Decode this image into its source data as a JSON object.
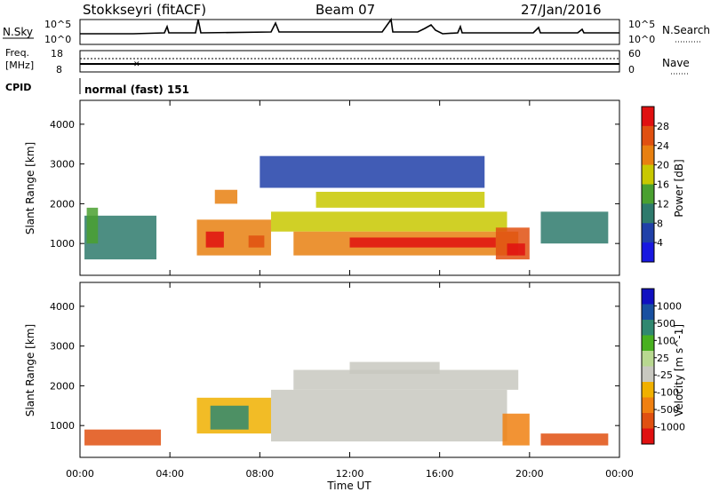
{
  "header": {
    "station": "Stokkseyri (fitACF)",
    "beam": "Beam 07",
    "date": "27/Jan/2016"
  },
  "noise_panel": {
    "left_label": "N.Sky",
    "left_ticks": [
      "10^5",
      "10^0"
    ],
    "right_ticks": [
      "10^5",
      "10^0"
    ],
    "right_label": "N.Search"
  },
  "freq_panel": {
    "left_label_1": "Freq.",
    "left_label_2": "[MHz]",
    "left_ticks": [
      "18",
      "8"
    ],
    "right_ticks": [
      "60",
      "0"
    ],
    "right_label": "Nave"
  },
  "cpid": {
    "label": "CPID",
    "value": "normal (fast) 151"
  },
  "x_axis": {
    "ticks": [
      "00:00",
      "04:00",
      "08:00",
      "12:00",
      "16:00",
      "20:00",
      "00:00"
    ],
    "title": "Time UT"
  },
  "colors": {
    "power": [
      "#1818e0",
      "#2040a8",
      "#2e7a6c",
      "#4aa030",
      "#c8c800",
      "#e88010",
      "#e05010",
      "#e01010"
    ],
    "velocity": [
      "#e01010",
      "#e05010",
      "#f08010",
      "#f0b000",
      "#c8c8c0",
      "#b8d890",
      "#48b020",
      "#308870",
      "#1850a0",
      "#1010c0"
    ]
  },
  "chart_data": [
    {
      "type": "heatmap",
      "name": "Power",
      "ylabel": "Slant Range [km]",
      "xlabel": "Time UT",
      "x_ticks": [
        "00:00",
        "04:00",
        "08:00",
        "12:00",
        "16:00",
        "20:00",
        "00:00"
      ],
      "y_ticks": [
        1000,
        2000,
        3000,
        4000
      ],
      "ylim": [
        200,
        4600
      ],
      "xlim_hours": [
        0,
        24
      ],
      "colorbar": {
        "label": "Power [dB]",
        "ticks": [
          "4",
          "8",
          "12",
          "16",
          "20",
          "24",
          "28"
        ]
      },
      "regions": [
        {
          "t0": 0.2,
          "t1": 3.4,
          "r0": 600,
          "r1": 1700,
          "level": 2
        },
        {
          "t0": 0.3,
          "t1": 0.8,
          "r0": 1000,
          "r1": 1900,
          "level": 3
        },
        {
          "t0": 5.2,
          "t1": 8.5,
          "r0": 700,
          "r1": 1600,
          "level": 5
        },
        {
          "t0": 5.6,
          "t1": 6.4,
          "r0": 900,
          "r1": 1300,
          "level": 7
        },
        {
          "t0": 6.0,
          "t1": 7.0,
          "r0": 2000,
          "r1": 2350,
          "level": 5
        },
        {
          "t0": 7.5,
          "t1": 8.2,
          "r0": 900,
          "r1": 1200,
          "level": 6
        },
        {
          "t0": 8.5,
          "t1": 19.0,
          "r0": 1300,
          "r1": 1800,
          "level": 4
        },
        {
          "t0": 9.5,
          "t1": 19.5,
          "r0": 700,
          "r1": 1300,
          "level": 5
        },
        {
          "t0": 12.0,
          "t1": 18.5,
          "r0": 900,
          "r1": 1150,
          "level": 7
        },
        {
          "t0": 10.5,
          "t1": 18.0,
          "r0": 1900,
          "r1": 2300,
          "level": 4
        },
        {
          "t0": 18.5,
          "t1": 20.0,
          "r0": 600,
          "r1": 1400,
          "level": 6
        },
        {
          "t0": 19.0,
          "t1": 19.8,
          "r0": 700,
          "r1": 1000,
          "level": 7
        },
        {
          "t0": 20.5,
          "t1": 23.5,
          "r0": 1000,
          "r1": 1800,
          "level": 2
        },
        {
          "t0": 8.0,
          "t1": 18.0,
          "r0": 2400,
          "r1": 3200,
          "level": 1
        }
      ]
    },
    {
      "type": "heatmap",
      "name": "Velocity",
      "ylabel": "Slant Range [km]",
      "xlabel": "Time UT",
      "x_ticks": [
        "00:00",
        "04:00",
        "08:00",
        "12:00",
        "16:00",
        "20:00",
        "00:00"
      ],
      "y_ticks": [
        1000,
        2000,
        3000,
        4000
      ],
      "ylim": [
        200,
        4600
      ],
      "xlim_hours": [
        0,
        24
      ],
      "colorbar": {
        "label": "Velocity [m s^-1]",
        "ticks": [
          "1000",
          "500",
          "100",
          "25",
          "-25",
          "-100",
          "-500",
          "-1000"
        ]
      },
      "regions": [
        {
          "t0": 0.2,
          "t1": 3.6,
          "r0": 500,
          "r1": 900,
          "level": 1
        },
        {
          "t0": 5.2,
          "t1": 8.5,
          "r0": 800,
          "r1": 1700,
          "level": 3
        },
        {
          "t0": 5.8,
          "t1": 7.5,
          "r0": 900,
          "r1": 1500,
          "level": 7
        },
        {
          "t0": 8.5,
          "t1": 19.0,
          "r0": 600,
          "r1": 1900,
          "level": 4
        },
        {
          "t0": 9.5,
          "t1": 19.5,
          "r0": 1900,
          "r1": 2400,
          "level": 4
        },
        {
          "t0": 18.8,
          "t1": 20.0,
          "r0": 500,
          "r1": 1300,
          "level": 2
        },
        {
          "t0": 20.5,
          "t1": 23.5,
          "r0": 500,
          "r1": 800,
          "level": 1
        },
        {
          "t0": 12.0,
          "t1": 16.0,
          "r0": 2300,
          "r1": 2600,
          "level": 4
        }
      ]
    }
  ]
}
